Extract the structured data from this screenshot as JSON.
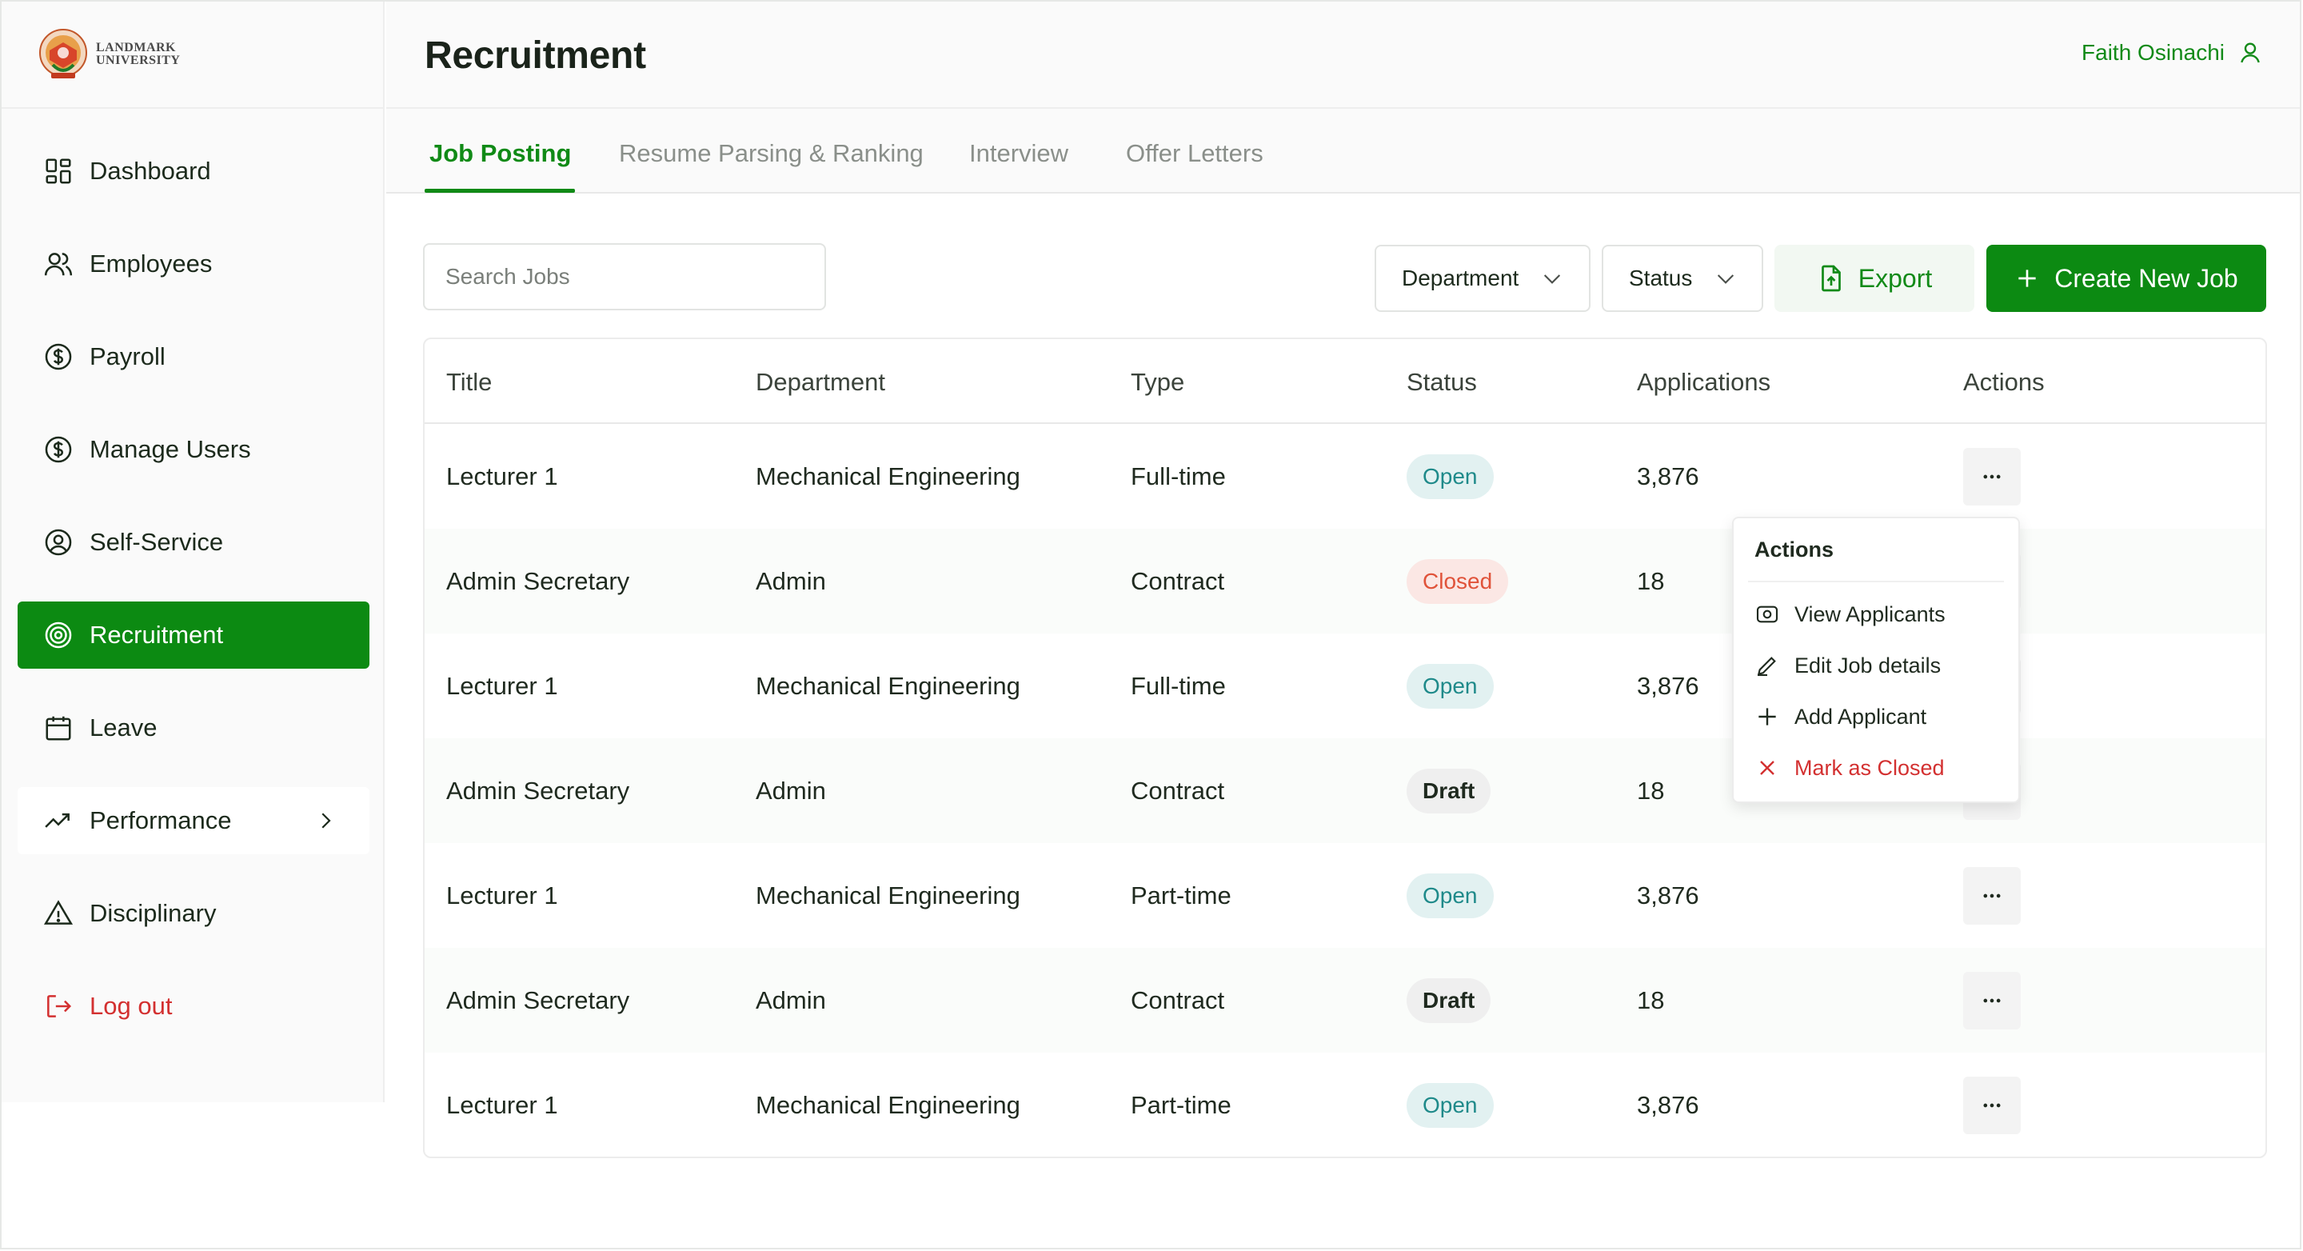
{
  "sidebar": {
    "logo_line1": "LANDMARK",
    "logo_line2": "UNIVERSITY",
    "items": [
      {
        "label": "Dashboard"
      },
      {
        "label": "Employees"
      },
      {
        "label": "Payroll"
      },
      {
        "label": "Manage Users"
      },
      {
        "label": "Self-Service"
      },
      {
        "label": "Recruitment"
      },
      {
        "label": "Leave"
      },
      {
        "label": "Performance"
      },
      {
        "label": "Disciplinary"
      },
      {
        "label": "Log out"
      }
    ],
    "active": "Recruitment"
  },
  "header": {
    "title": "Recruitment",
    "user_name": "Faith Osinachi"
  },
  "tabs": [
    {
      "label": "Job Posting"
    },
    {
      "label": "Resume Parsing & Ranking"
    },
    {
      "label": "Interview"
    },
    {
      "label": "Offer Letters"
    }
  ],
  "toolbar": {
    "search_placeholder": "Search Jobs",
    "department_label": "Department",
    "status_label": "Status",
    "export_label": "Export",
    "create_label": "Create New Job"
  },
  "table": {
    "columns": [
      "Title",
      "Department",
      "Type",
      "Status",
      "Applications",
      "Actions"
    ],
    "rows": [
      {
        "title": "Lecturer 1",
        "department": "Mechanical Engineering",
        "type": "Full-time",
        "status": "Open",
        "applications": "3,876"
      },
      {
        "title": "Admin Secretary",
        "department": "Admin",
        "type": "Contract",
        "status": "Closed",
        "applications": "18"
      },
      {
        "title": "Lecturer 1",
        "department": "Mechanical Engineering",
        "type": "Full-time",
        "status": "Open",
        "applications": "3,876"
      },
      {
        "title": "Admin Secretary",
        "department": "Admin",
        "type": "Contract",
        "status": "Draft",
        "applications": "18"
      },
      {
        "title": "Lecturer 1",
        "department": "Mechanical Engineering",
        "type": "Part-time",
        "status": "Open",
        "applications": "3,876"
      },
      {
        "title": "Admin Secretary",
        "department": "Admin",
        "type": "Contract",
        "status": "Draft",
        "applications": "18"
      },
      {
        "title": "Lecturer 1",
        "department": "Mechanical Engineering",
        "type": "Part-time",
        "status": "Open",
        "applications": "3,876"
      }
    ]
  },
  "actions_menu": {
    "title": "Actions",
    "items": [
      {
        "label": "View Applicants",
        "icon": "eye-icon"
      },
      {
        "label": "Edit Job details",
        "icon": "pencil-icon"
      },
      {
        "label": "Add Applicant",
        "icon": "plus-icon"
      },
      {
        "label": "Mark as Closed",
        "icon": "close-icon"
      }
    ]
  },
  "colors": {
    "brand_green": "#0c8a12",
    "danger": "#d33030",
    "open_badge": "#1f8a8a",
    "closed_badge": "#e0533a"
  }
}
